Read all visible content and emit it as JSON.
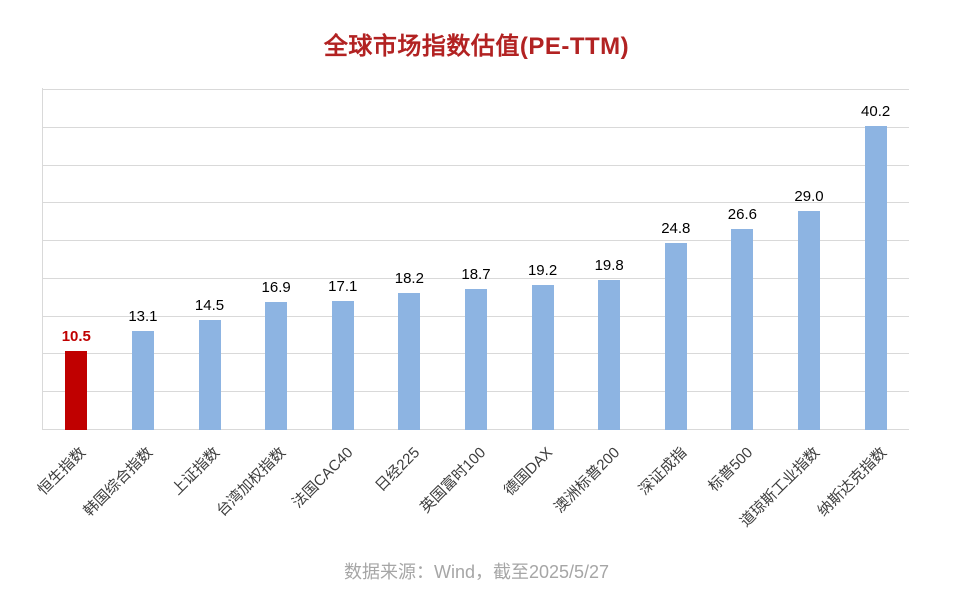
{
  "footer": "数据来源：Wind，截至2025/5/27",
  "chart_data": {
    "type": "bar",
    "title": "全球市场指数估值(PE-TTM)",
    "categories": [
      "恒生指数",
      "韩国综合指数",
      "上证指数",
      "台湾加权指数",
      "法国CAC40",
      "日经225",
      "英国富时100",
      "德国DAX",
      "澳洲标普200",
      "深证成指",
      "标普500",
      "道琼斯工业指数",
      "纳斯达克指数"
    ],
    "values": [
      10.5,
      13.1,
      14.5,
      16.9,
      17.1,
      18.2,
      18.7,
      19.2,
      19.8,
      24.8,
      26.6,
      29.0,
      40.2
    ],
    "value_label_decimals": 1,
    "highlight_index": 0,
    "xlabel": "",
    "ylabel": "",
    "ylim": [
      0,
      45
    ],
    "grid_step": 5,
    "grid": true,
    "legend": false,
    "colors": {
      "bar": "#8DB4E2",
      "highlight": "#C00000",
      "title": "#B22222",
      "grid": "#D9D9D9",
      "value_label": "#000000",
      "axis_label": "#3d3d3d",
      "footer": "#A6A6A6"
    }
  }
}
